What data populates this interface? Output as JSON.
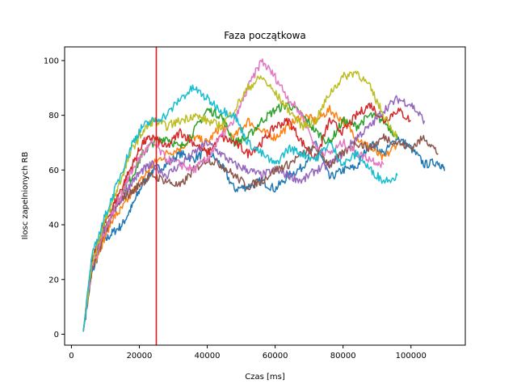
{
  "chart_data": {
    "type": "line",
    "title": "Faza początkowa",
    "xlabel": "Czas [ms]",
    "ylabel": "Ilosc zapelnionych RB",
    "xlim": [
      -2000,
      116000
    ],
    "ylim": [
      -4,
      105
    ],
    "xticks": [
      0,
      20000,
      40000,
      60000,
      80000,
      100000
    ],
    "xtick_labels": [
      "0",
      "20000",
      "40000",
      "60000",
      "80000",
      "100000"
    ],
    "yticks": [
      0,
      20,
      40,
      60,
      80,
      100
    ],
    "ytick_labels": [
      "0",
      "20",
      "40",
      "60",
      "80",
      "100"
    ],
    "grid": false,
    "vline": {
      "x": 25000,
      "color": "#e41a1c"
    },
    "series": [
      {
        "color": "#1f77b4",
        "x": [
          3500,
          6000,
          9000,
          12000,
          15000,
          18000,
          21000,
          24000,
          28000,
          32000,
          36000,
          40000,
          44000,
          48000,
          52000,
          56000,
          60000,
          64000,
          68000,
          72000,
          76000,
          80000,
          84000,
          88000,
          92000,
          96000,
          100000,
          104000,
          108000,
          110000
        ],
        "y": [
          1,
          22,
          33,
          37,
          40,
          47,
          55,
          60,
          62,
          66,
          64,
          67,
          62,
          53,
          54,
          56,
          53,
          58,
          61,
          70,
          57,
          60,
          61,
          70,
          66,
          72,
          68,
          62,
          63,
          60
        ]
      },
      {
        "color": "#ff7f0e",
        "x": [
          3500,
          6000,
          9000,
          12000,
          15000,
          18000,
          21000,
          24000,
          28000,
          32000,
          36000,
          40000,
          44000,
          48000,
          52000,
          56000,
          60000,
          64000,
          68000,
          72000,
          76000,
          80000,
          84000,
          88000,
          92000,
          96000
        ],
        "y": [
          1,
          24,
          33,
          42,
          46,
          52,
          57,
          62,
          66,
          68,
          72,
          70,
          76,
          72,
          78,
          74,
          72,
          76,
          80,
          78,
          82,
          78,
          72,
          68,
          64,
          70
        ]
      },
      {
        "color": "#2ca02c",
        "x": [
          3500,
          6000,
          9000,
          12000,
          15000,
          18000,
          21000,
          24000,
          28000,
          32000,
          36000,
          40000,
          44000,
          48000,
          52000,
          56000,
          60000,
          64000,
          68000,
          72000,
          76000,
          80000,
          84000,
          88000,
          92000,
          96000
        ],
        "y": [
          1,
          27,
          36,
          45,
          52,
          58,
          66,
          70,
          72,
          68,
          74,
          82,
          80,
          70,
          72,
          78,
          82,
          84,
          80,
          74,
          70,
          78,
          76,
          80,
          78,
          72
        ]
      },
      {
        "color": "#d62728",
        "x": [
          3500,
          6000,
          9000,
          12000,
          15000,
          18000,
          21000,
          24000,
          28000,
          32000,
          36000,
          40000,
          44000,
          48000,
          52000,
          56000,
          60000,
          64000,
          68000,
          72000,
          76000,
          80000,
          84000,
          88000,
          92000,
          96000,
          100000
        ],
        "y": [
          1,
          26,
          38,
          46,
          54,
          62,
          70,
          72,
          68,
          74,
          70,
          66,
          72,
          70,
          66,
          70,
          76,
          78,
          70,
          64,
          78,
          74,
          80,
          84,
          78,
          82,
          78
        ]
      },
      {
        "color": "#9467bd",
        "x": [
          3500,
          6000,
          9000,
          12000,
          15000,
          18000,
          21000,
          24000,
          28000,
          32000,
          36000,
          40000,
          44000,
          48000,
          52000,
          56000,
          60000,
          64000,
          68000,
          72000,
          76000,
          80000,
          84000,
          88000,
          92000,
          96000,
          100000,
          104000
        ],
        "y": [
          1,
          24,
          36,
          44,
          50,
          56,
          60,
          62,
          58,
          62,
          66,
          70,
          66,
          62,
          60,
          58,
          60,
          58,
          56,
          60,
          62,
          66,
          72,
          76,
          82,
          86,
          84,
          78
        ]
      },
      {
        "color": "#8c564b",
        "x": [
          3500,
          6000,
          9000,
          12000,
          15000,
          18000,
          21000,
          24000,
          28000,
          32000,
          36000,
          40000,
          44000,
          48000,
          52000,
          56000,
          60000,
          64000,
          68000,
          72000,
          76000,
          80000,
          84000,
          88000,
          92000,
          96000,
          100000,
          104000,
          108000
        ],
        "y": [
          1,
          23,
          34,
          44,
          50,
          52,
          56,
          58,
          56,
          54,
          60,
          64,
          62,
          58,
          54,
          56,
          60,
          62,
          66,
          68,
          62,
          66,
          70,
          68,
          72,
          70,
          68,
          72,
          66
        ]
      },
      {
        "color": "#e377c2",
        "x": [
          3500,
          6000,
          9000,
          12000,
          15000,
          18000,
          21000,
          24000,
          28000,
          32000,
          36000,
          40000,
          44000,
          48000,
          52000,
          56000,
          60000,
          64000,
          68000,
          72000,
          76000,
          80000,
          84000,
          88000,
          92000
        ],
        "y": [
          1,
          25,
          35,
          44,
          52,
          60,
          66,
          70,
          64,
          62,
          60,
          64,
          72,
          78,
          90,
          100,
          94,
          86,
          80,
          68,
          66,
          70,
          66,
          64,
          62
        ]
      },
      {
        "color": "#bcbd22",
        "x": [
          3500,
          6000,
          9000,
          12000,
          15000,
          18000,
          21000,
          24000,
          28000,
          32000,
          36000,
          40000,
          44000,
          48000,
          52000,
          56000,
          60000,
          64000,
          68000,
          72000,
          76000,
          80000,
          84000,
          88000,
          92000,
          96000
        ],
        "y": [
          1,
          26,
          38,
          48,
          58,
          68,
          74,
          78,
          76,
          78,
          80,
          78,
          76,
          82,
          90,
          94,
          88,
          82,
          76,
          78,
          88,
          94,
          96,
          90,
          80,
          72
        ]
      },
      {
        "color": "#17becf",
        "x": [
          3500,
          6000,
          9000,
          12000,
          15000,
          18000,
          21000,
          24000,
          28000,
          32000,
          36000,
          40000,
          44000,
          48000,
          52000,
          56000,
          60000,
          64000,
          68000,
          72000,
          76000,
          80000,
          84000,
          88000,
          92000,
          96000
        ],
        "y": [
          1,
          28,
          40,
          50,
          60,
          70,
          76,
          78,
          80,
          86,
          90,
          86,
          82,
          80,
          70,
          66,
          62,
          68,
          66,
          64,
          70,
          62,
          66,
          60,
          56,
          58
        ]
      }
    ]
  }
}
